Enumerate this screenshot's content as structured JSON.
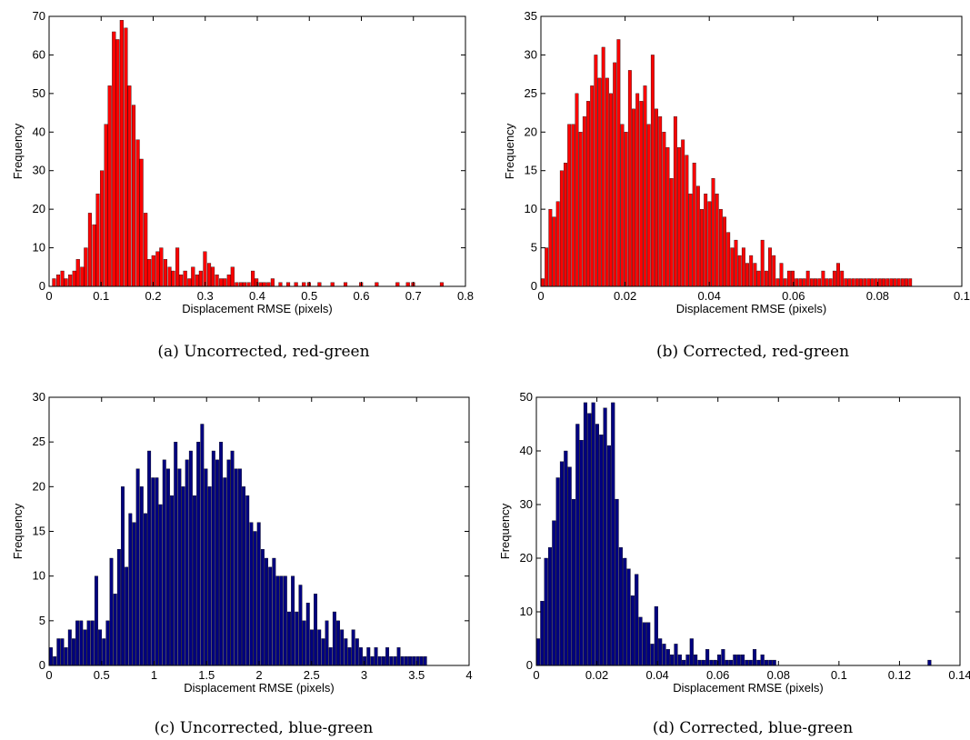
{
  "chart_data": [
    {
      "type": "bar",
      "caption": "(a) Uncorrected, red-green",
      "xlabel": "Displacement RMSE (pixels)",
      "ylabel": "Frequency",
      "xlim": [
        0,
        0.8
      ],
      "ylim": [
        0,
        70
      ],
      "xticks": [
        "0",
        "0.1",
        "0.2",
        "0.3",
        "0.4",
        "0.5",
        "0.6",
        "0.7",
        "0.8"
      ],
      "yticks": [
        "0",
        "10",
        "20",
        "30",
        "40",
        "50",
        "60",
        "70"
      ],
      "bar_color": "#ff0000",
      "bin_width": 0.0076,
      "x": [
        0.01,
        0.018,
        0.026,
        0.033,
        0.041,
        0.049,
        0.056,
        0.064,
        0.071,
        0.079,
        0.087,
        0.094,
        0.102,
        0.11,
        0.117,
        0.125,
        0.132,
        0.14,
        0.148,
        0.155,
        0.163,
        0.171,
        0.178,
        0.186,
        0.193,
        0.201,
        0.209,
        0.216,
        0.224,
        0.232,
        0.239,
        0.247,
        0.254,
        0.262,
        0.27,
        0.277,
        0.285,
        0.292,
        0.3,
        0.308,
        0.315,
        0.323,
        0.331,
        0.338,
        0.346,
        0.353,
        0.361,
        0.369,
        0.376,
        0.384,
        0.392,
        0.399,
        0.407,
        0.414,
        0.422,
        0.43,
        0.445,
        0.46,
        0.475,
        0.49,
        0.5,
        0.52,
        0.545,
        0.57,
        0.6,
        0.63,
        0.67,
        0.69,
        0.7,
        0.755
      ],
      "values": [
        2,
        3,
        4,
        2,
        3,
        4,
        7,
        5,
        10,
        19,
        16,
        24,
        30,
        42,
        52,
        66,
        64,
        69,
        67,
        52,
        47,
        38,
        33,
        19,
        7,
        8,
        9,
        10,
        7,
        5,
        4,
        10,
        3,
        4,
        2,
        5,
        3,
        4,
        9,
        6,
        5,
        3,
        2,
        2,
        3,
        5,
        1,
        1,
        1,
        1,
        4,
        2,
        1,
        1,
        1,
        2,
        1,
        1,
        1,
        1,
        1,
        1,
        1,
        1,
        1,
        1,
        1,
        1,
        1,
        1
      ]
    },
    {
      "type": "bar",
      "caption": "(b) Corrected, red-green",
      "xlabel": "Displacement RMSE (pixels)",
      "ylabel": "Frequency",
      "xlim": [
        0,
        0.1
      ],
      "ylim": [
        0,
        35
      ],
      "xticks": [
        "0",
        "0.02",
        "0.04",
        "0.06",
        "0.08",
        "0.1"
      ],
      "yticks": [
        "0",
        "5",
        "10",
        "15",
        "20",
        "25",
        "30",
        "35"
      ],
      "bar_color": "#ff0000",
      "bin_width": 0.00089,
      "x": [
        0.0005,
        0.0014,
        0.0023,
        0.0032,
        0.0041,
        0.005,
        0.0059,
        0.0068,
        0.0077,
        0.0086,
        0.0095,
        0.0104,
        0.0113,
        0.0122,
        0.0131,
        0.014,
        0.0149,
        0.0158,
        0.0167,
        0.0176,
        0.0185,
        0.0194,
        0.0203,
        0.0212,
        0.0221,
        0.023,
        0.0239,
        0.0248,
        0.0257,
        0.0266,
        0.0275,
        0.0284,
        0.0293,
        0.0302,
        0.0311,
        0.032,
        0.0329,
        0.0338,
        0.0347,
        0.0356,
        0.0365,
        0.0374,
        0.0383,
        0.0392,
        0.0401,
        0.041,
        0.0419,
        0.0428,
        0.0437,
        0.0446,
        0.0455,
        0.0464,
        0.0473,
        0.0482,
        0.0491,
        0.05,
        0.0509,
        0.0518,
        0.0527,
        0.0536,
        0.0545,
        0.0554,
        0.0563,
        0.0572,
        0.0581,
        0.059,
        0.0599,
        0.0608,
        0.0617,
        0.0626,
        0.0635,
        0.0644,
        0.0653,
        0.0662,
        0.0671,
        0.068,
        0.0689,
        0.0698,
        0.0707,
        0.0716,
        0.0725,
        0.0734,
        0.0743,
        0.0752,
        0.0761,
        0.077,
        0.0779,
        0.0788,
        0.0797,
        0.0806,
        0.0815,
        0.0824,
        0.0833,
        0.0842,
        0.0851,
        0.086,
        0.0869,
        0.0878
      ],
      "values": [
        1,
        5,
        10,
        9,
        11,
        15,
        16,
        21,
        21,
        25,
        20,
        22,
        24,
        26,
        30,
        27,
        31,
        27,
        25,
        29,
        32,
        21,
        20,
        28,
        23,
        25,
        24,
        26,
        21,
        30,
        23,
        22,
        20,
        18,
        14,
        22,
        18,
        19,
        17,
        12,
        16,
        13,
        10,
        12,
        11,
        14,
        12,
        10,
        9,
        7,
        5,
        6,
        4,
        5,
        3,
        4,
        3,
        2,
        6,
        2,
        5,
        4,
        1,
        3,
        1,
        2,
        2,
        1,
        1,
        1,
        2,
        1,
        1,
        1,
        2,
        1,
        1,
        2,
        3,
        2,
        1,
        1,
        1,
        1,
        1,
        1,
        1,
        1,
        1,
        1,
        1,
        1,
        1,
        1,
        1,
        1,
        1,
        1
      ]
    },
    {
      "type": "bar",
      "caption": "(c) Uncorrected, blue-green",
      "xlabel": "Displacement RMSE (pixels)",
      "ylabel": "Frequency",
      "xlim": [
        0,
        4
      ],
      "ylim": [
        0,
        30
      ],
      "xticks": [
        "0",
        "0.5",
        "1",
        "1.5",
        "2",
        "2.5",
        "3",
        "3.5",
        "4"
      ],
      "yticks": [
        "0",
        "5",
        "10",
        "15",
        "20",
        "25",
        "30"
      ],
      "bar_color": "#000080",
      "bin_width": 0.036,
      "x": [
        0.02,
        0.056,
        0.092,
        0.128,
        0.164,
        0.2,
        0.236,
        0.272,
        0.308,
        0.344,
        0.38,
        0.416,
        0.452,
        0.488,
        0.524,
        0.56,
        0.596,
        0.632,
        0.668,
        0.704,
        0.74,
        0.776,
        0.812,
        0.848,
        0.884,
        0.92,
        0.956,
        0.992,
        1.028,
        1.064,
        1.1,
        1.136,
        1.172,
        1.208,
        1.244,
        1.28,
        1.316,
        1.352,
        1.388,
        1.424,
        1.46,
        1.496,
        1.532,
        1.568,
        1.604,
        1.64,
        1.676,
        1.712,
        1.748,
        1.784,
        1.82,
        1.856,
        1.892,
        1.928,
        1.964,
        2.0,
        2.036,
        2.072,
        2.108,
        2.144,
        2.18,
        2.216,
        2.252,
        2.288,
        2.324,
        2.36,
        2.396,
        2.432,
        2.468,
        2.504,
        2.54,
        2.576,
        2.612,
        2.648,
        2.684,
        2.72,
        2.756,
        2.792,
        2.828,
        2.864,
        2.9,
        2.936,
        2.972,
        3.008,
        3.044,
        3.08,
        3.116,
        3.152,
        3.188,
        3.224,
        3.26,
        3.296,
        3.332,
        3.368,
        3.404,
        3.44,
        3.476,
        3.512,
        3.548,
        3.584
      ],
      "values": [
        2,
        1,
        3,
        3,
        2,
        4,
        3,
        5,
        5,
        4,
        5,
        5,
        10,
        4,
        3,
        5,
        12,
        8,
        13,
        20,
        11,
        17,
        16,
        22,
        20,
        17,
        24,
        21,
        21,
        18,
        23,
        22,
        19,
        25,
        22,
        20,
        23,
        24,
        19,
        25,
        27,
        22,
        20,
        24,
        23,
        25,
        21,
        23,
        24,
        22,
        22,
        20,
        19,
        16,
        15,
        16,
        13,
        12,
        11,
        12,
        10,
        10,
        10,
        6,
        10,
        6,
        9,
        5,
        7,
        4,
        8,
        4,
        3,
        5,
        2,
        6,
        5,
        4,
        3,
        2,
        4,
        3,
        2,
        1,
        2,
        1,
        2,
        1,
        1,
        2,
        1,
        1,
        2,
        1,
        1,
        1,
        1,
        1,
        1,
        1
      ]
    },
    {
      "type": "bar",
      "caption": "(d) Corrected, blue-green",
      "xlabel": "Displacement RMSE (pixels)",
      "ylabel": "Frequency",
      "xlim": [
        0,
        0.14
      ],
      "ylim": [
        0,
        50
      ],
      "xticks": [
        "0",
        "0.02",
        "0.04",
        "0.06",
        "0.08",
        "0.1",
        "0.12",
        "0.14"
      ],
      "yticks": [
        "0",
        "10",
        "20",
        "30",
        "40",
        "50"
      ],
      "bar_color": "#000080",
      "bin_width": 0.00131,
      "x": [
        0.0007,
        0.002,
        0.0033,
        0.0046,
        0.0059,
        0.0072,
        0.0085,
        0.0098,
        0.0111,
        0.0124,
        0.0137,
        0.015,
        0.0163,
        0.0176,
        0.0189,
        0.0202,
        0.0215,
        0.0228,
        0.0241,
        0.0254,
        0.0267,
        0.028,
        0.0293,
        0.0306,
        0.0319,
        0.0332,
        0.0345,
        0.0358,
        0.0371,
        0.0384,
        0.0397,
        0.041,
        0.0423,
        0.0436,
        0.0449,
        0.0462,
        0.0475,
        0.0488,
        0.0501,
        0.0514,
        0.0527,
        0.054,
        0.0553,
        0.0566,
        0.0579,
        0.0592,
        0.0605,
        0.0618,
        0.0631,
        0.0644,
        0.0657,
        0.067,
        0.0683,
        0.0696,
        0.0709,
        0.0722,
        0.0735,
        0.0748,
        0.0761,
        0.0774,
        0.0787,
        0.13
      ],
      "values": [
        5,
        12,
        20,
        22,
        27,
        35,
        38,
        40,
        37,
        31,
        45,
        42,
        49,
        47,
        49,
        45,
        43,
        48,
        41,
        49,
        31,
        22,
        20,
        18,
        13,
        17,
        9,
        8,
        8,
        4,
        11,
        5,
        4,
        3,
        2,
        4,
        2,
        1,
        2,
        5,
        2,
        1,
        1,
        3,
        1,
        1,
        2,
        3,
        1,
        1,
        2,
        2,
        2,
        1,
        1,
        3,
        1,
        2,
        1,
        1,
        1,
        1
      ]
    }
  ]
}
